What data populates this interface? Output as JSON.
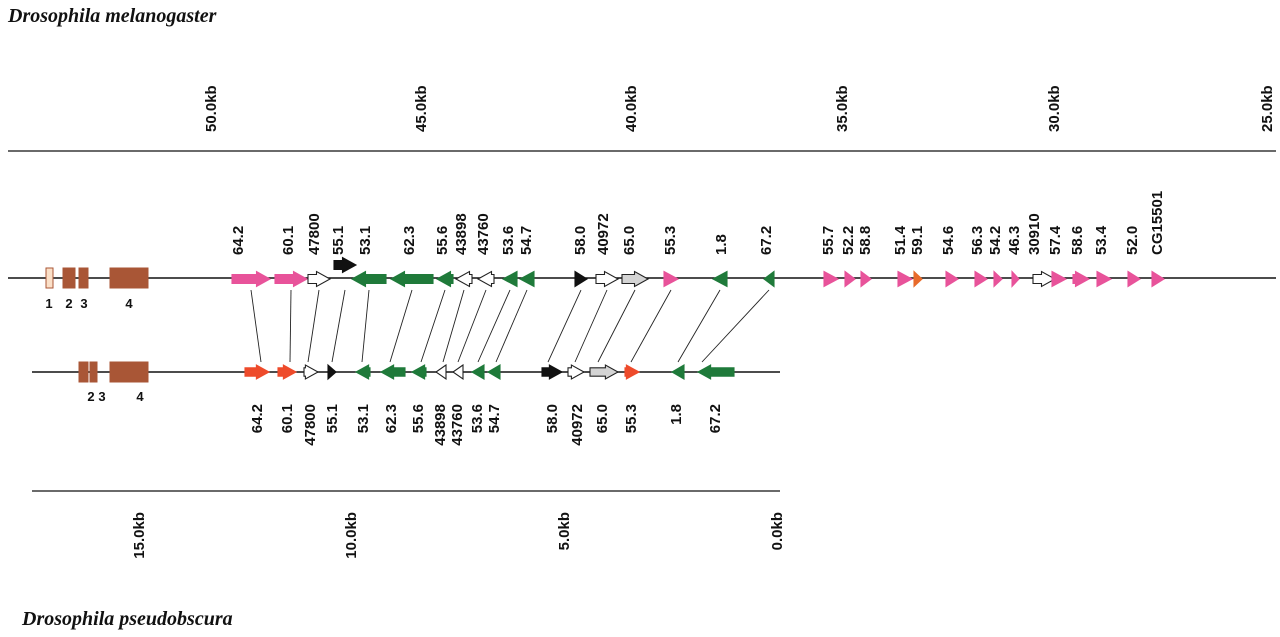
{
  "species": {
    "top": "Drosophila melanogaster",
    "bottom": "Drosophila pseudobscura"
  },
  "colors": {
    "pink": "#e8539a",
    "green": "#1f7a3a",
    "black": "#111111",
    "white": "#ffffff",
    "grey": "#d4d4d4",
    "red": "#ee4b2b",
    "orange": "#e86a2a",
    "exon_brown": "#a95636",
    "exon_open": "#fbe0c8"
  },
  "melanogaster": {
    "scale_labels": [
      "50.0kb",
      "45.0kb",
      "40.0kb",
      "35.0kb",
      "30.0kb",
      "25.0kb"
    ],
    "exon_labels": [
      "1",
      "2",
      "3",
      "4"
    ],
    "genes": [
      {
        "label": "64.2",
        "color": "pink",
        "dir": "right"
      },
      {
        "label": "60.1",
        "color": "pink",
        "dir": "right"
      },
      {
        "label": "47800",
        "color": "white",
        "dir": "right"
      },
      {
        "label": "55.1",
        "color": "black",
        "dir": "right"
      },
      {
        "label": "53.1",
        "color": "green",
        "dir": "left"
      },
      {
        "label": "62.3",
        "color": "green",
        "dir": "left"
      },
      {
        "label": "55.6",
        "color": "green",
        "dir": "left"
      },
      {
        "label": "43898",
        "color": "white",
        "dir": "left"
      },
      {
        "label": "43760",
        "color": "white",
        "dir": "left"
      },
      {
        "label": "53.6",
        "color": "green",
        "dir": "left"
      },
      {
        "label": "54.7",
        "color": "green",
        "dir": "left"
      },
      {
        "label": "58.0",
        "color": "black",
        "dir": "right"
      },
      {
        "label": "40972",
        "color": "white",
        "dir": "right"
      },
      {
        "label": "65.0",
        "color": "grey",
        "dir": "right"
      },
      {
        "label": "55.3",
        "color": "pink",
        "dir": "right"
      },
      {
        "label": "1.8",
        "color": "green",
        "dir": "left"
      },
      {
        "label": "67.2",
        "color": "green",
        "dir": "left"
      },
      {
        "label": "55.7",
        "color": "pink",
        "dir": "right"
      },
      {
        "label": "52.2",
        "color": "pink",
        "dir": "right"
      },
      {
        "label": "58.8",
        "color": "pink",
        "dir": "right"
      },
      {
        "label": "51.4",
        "color": "pink",
        "dir": "right"
      },
      {
        "label": "59.1",
        "color": "orange",
        "dir": "right"
      },
      {
        "label": "54.6",
        "color": "pink",
        "dir": "right"
      },
      {
        "label": "56.3",
        "color": "pink",
        "dir": "right"
      },
      {
        "label": "54.2",
        "color": "pink",
        "dir": "right"
      },
      {
        "label": "46.3",
        "color": "pink",
        "dir": "right"
      },
      {
        "label": "30910",
        "color": "white",
        "dir": "right"
      },
      {
        "label": "57.4",
        "color": "pink",
        "dir": "right"
      },
      {
        "label": "58.6",
        "color": "pink",
        "dir": "right"
      },
      {
        "label": "53.4",
        "color": "pink",
        "dir": "right"
      },
      {
        "label": "52.0",
        "color": "pink",
        "dir": "right"
      },
      {
        "label": "CG15501",
        "color": "pink",
        "dir": "right"
      }
    ]
  },
  "pseudoobscura": {
    "scale_labels": [
      "15.0kb",
      "10.0kb",
      "5.0kb",
      "0.0kb"
    ],
    "exon_labels": [
      "2",
      "3",
      "4"
    ],
    "genes": [
      {
        "label": "64.2",
        "color": "red",
        "dir": "right"
      },
      {
        "label": "60.1",
        "color": "red",
        "dir": "right"
      },
      {
        "label": "47800",
        "color": "white",
        "dir": "right"
      },
      {
        "label": "55.1",
        "color": "black",
        "dir": "right"
      },
      {
        "label": "53.1",
        "color": "green",
        "dir": "left"
      },
      {
        "label": "62.3",
        "color": "green",
        "dir": "left"
      },
      {
        "label": "55.6",
        "color": "green",
        "dir": "left"
      },
      {
        "label": "43898",
        "color": "white",
        "dir": "left"
      },
      {
        "label": "43760",
        "color": "white",
        "dir": "left"
      },
      {
        "label": "53.6",
        "color": "green",
        "dir": "left"
      },
      {
        "label": "54.7",
        "color": "green",
        "dir": "left"
      },
      {
        "label": "58.0",
        "color": "black",
        "dir": "right"
      },
      {
        "label": "40972",
        "color": "white",
        "dir": "right"
      },
      {
        "label": "65.0",
        "color": "grey",
        "dir": "right"
      },
      {
        "label": "55.3",
        "color": "red",
        "dir": "right"
      },
      {
        "label": "1.8",
        "color": "green",
        "dir": "left"
      },
      {
        "label": "67.2",
        "color": "green",
        "dir": "left"
      }
    ]
  }
}
